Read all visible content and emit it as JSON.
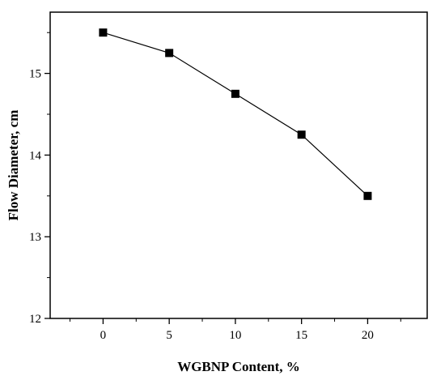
{
  "chart_data": {
    "type": "line",
    "title": "",
    "xlabel": "WGBNP Content, %",
    "ylabel": "Flow Diameter, cm",
    "x": [
      0,
      5,
      10,
      15,
      20
    ],
    "series": [
      {
        "values": [
          15.5,
          15.25,
          14.75,
          14.25,
          13.5
        ]
      }
    ],
    "xlim": [
      -4,
      24.5
    ],
    "ylim": [
      12,
      15.75
    ],
    "xticks": [
      "0",
      "5",
      "10",
      "15",
      "20"
    ],
    "yticks": [
      "12",
      "13",
      "14",
      "15"
    ],
    "xtick_values": [
      0,
      5,
      10,
      15,
      20
    ],
    "ytick_values": [
      12,
      13,
      14,
      15
    ],
    "marker": "filled-square",
    "line_color": "#000000",
    "marker_color": "#000000",
    "grid": false,
    "legend": "none"
  }
}
